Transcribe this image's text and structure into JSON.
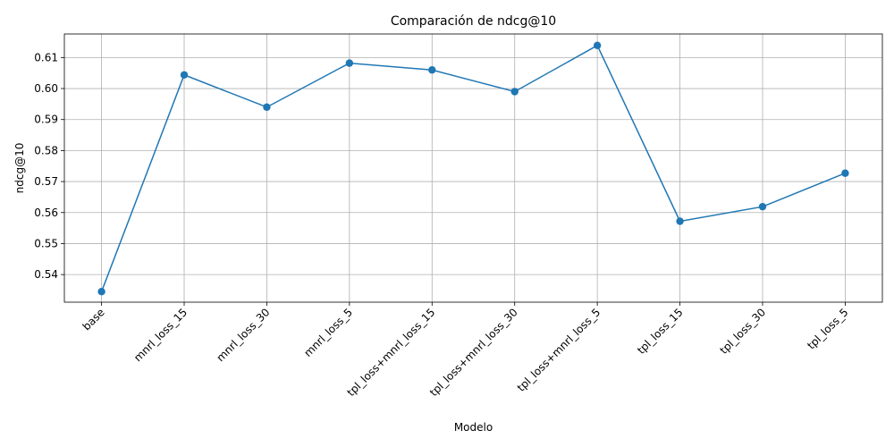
{
  "chart_data": {
    "type": "line",
    "title": "Comparación de ndcg@10",
    "xlabel": "Modelo",
    "ylabel": "ndcg@10",
    "categories": [
      "base",
      "mnrl_loss_15",
      "mnrl_loss_30",
      "mnrl_loss_5",
      "tpl_loss+mnrl_loss_15",
      "tpl_loss+mnrl_loss_30",
      "tpl_loss+mnrl_loss_5",
      "tpl_loss_15",
      "tpl_loss_30",
      "tpl_loss_5"
    ],
    "series": [
      {
        "values": [
          0.5345,
          0.6044,
          0.594,
          0.6082,
          0.606,
          0.599,
          0.6139,
          0.5572,
          0.5619,
          0.5727
        ],
        "color": "#1f77b4",
        "marker": "circle"
      }
    ],
    "ylim": [
      0.5311,
      0.6176
    ],
    "yticks": [
      "0.54",
      "0.55",
      "0.56",
      "0.57",
      "0.58",
      "0.59",
      "0.60",
      "0.61"
    ],
    "grid": true,
    "legend": "none"
  }
}
